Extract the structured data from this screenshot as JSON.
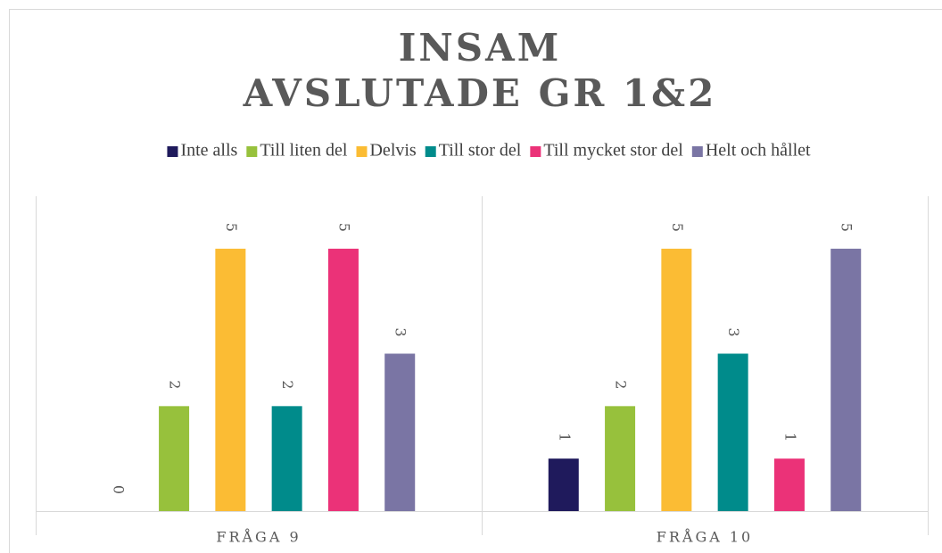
{
  "chart_data": {
    "type": "bar",
    "title": [
      "INSAM",
      "AVSLUTADE GR 1&2"
    ],
    "categories": [
      "FRÅGA 9",
      "FRÅGA 10"
    ],
    "series": [
      {
        "name": "Inte alls",
        "color": "#1f1a5c",
        "values": [
          0,
          1
        ]
      },
      {
        "name": "Till liten del",
        "color": "#97c13c",
        "values": [
          2,
          2
        ]
      },
      {
        "name": "Delvis",
        "color": "#fbbc34",
        "values": [
          5,
          5
        ]
      },
      {
        "name": "Till stor del",
        "color": "#008b8b",
        "values": [
          2,
          3
        ]
      },
      {
        "name": "Till mycket stor del",
        "color": "#eb3278",
        "values": [
          5,
          1
        ]
      },
      {
        "name": "Helt och hållet",
        "color": "#7a75a4",
        "values": [
          3,
          5
        ]
      }
    ],
    "ylim": [
      0,
      6
    ],
    "legend": "top"
  }
}
